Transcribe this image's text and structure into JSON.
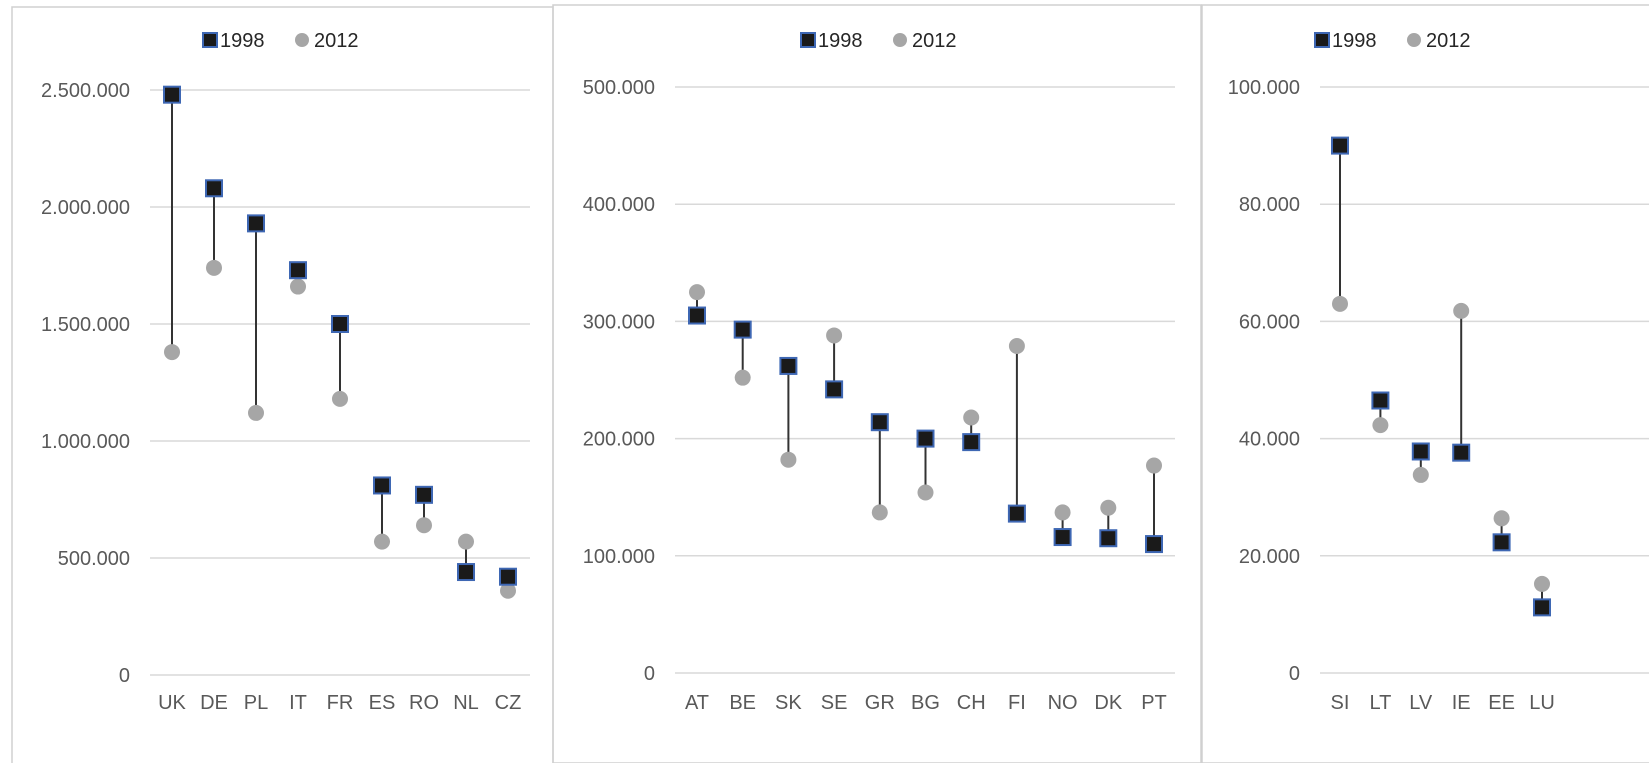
{
  "colors": {
    "series_1998_fill": "#1a1a1a",
    "series_1998_stroke": "#3e67b3",
    "series_2012_fill": "#a6a6a6",
    "connector": "#333333",
    "gridline": "#d9d9d9",
    "panel_border": "#d0d0d0",
    "text": "#595959"
  },
  "icons": {
    "marker_1998": "square-marker-icon",
    "marker_2012": "circle-marker-icon"
  },
  "chart_data": [
    {
      "type": "scatter",
      "style": "dumbbell",
      "legend": [
        "1998",
        "2012"
      ],
      "legend_placement": "top-center",
      "grid": true,
      "ylim": [
        0,
        2500000
      ],
      "yticks": [
        0,
        500000,
        1000000,
        1500000,
        2000000,
        2500000
      ],
      "ytick_labels": [
        "0",
        "500.000",
        "1.000.000",
        "1.500.000",
        "2.000.000",
        "2.500.000"
      ],
      "categories": [
        "UK",
        "DE",
        "PL",
        "IT",
        "FR",
        "ES",
        "RO",
        "NL",
        "CZ"
      ],
      "series": [
        {
          "name": "1998",
          "values": [
            2480000,
            2080000,
            1930000,
            1730000,
            1500000,
            810000,
            770000,
            440000,
            420000
          ]
        },
        {
          "name": "2012",
          "values": [
            1380000,
            1740000,
            1120000,
            1660000,
            1180000,
            570000,
            640000,
            570000,
            360000
          ]
        }
      ]
    },
    {
      "type": "scatter",
      "style": "dumbbell",
      "legend": [
        "1998",
        "2012"
      ],
      "legend_placement": "top-center",
      "grid": true,
      "ylim": [
        0,
        500000
      ],
      "yticks": [
        0,
        100000,
        200000,
        300000,
        400000,
        500000
      ],
      "ytick_labels": [
        "0",
        "100.000",
        "200.000",
        "300.000",
        "400.000",
        "500.000"
      ],
      "categories": [
        "AT",
        "BE",
        "SK",
        "SE",
        "GR",
        "BG",
        "CH",
        "FI",
        "NO",
        "DK",
        "PT"
      ],
      "series": [
        {
          "name": "1998",
          "values": [
            305000,
            293000,
            262000,
            242000,
            214000,
            200000,
            197000,
            136000,
            116000,
            115000,
            110000
          ]
        },
        {
          "name": "2012",
          "values": [
            325000,
            252000,
            182000,
            288000,
            137000,
            154000,
            218000,
            279000,
            137000,
            141000,
            177000
          ]
        }
      ]
    },
    {
      "type": "scatter",
      "style": "dumbbell",
      "legend": [
        "1998",
        "2012"
      ],
      "legend_placement": "top-center",
      "grid": true,
      "ylim": [
        0,
        100000
      ],
      "yticks": [
        0,
        20000,
        40000,
        60000,
        80000,
        100000
      ],
      "ytick_labels": [
        "0",
        "20.000",
        "40.000",
        "60.000",
        "80.000",
        "100.000"
      ],
      "categories": [
        "SI",
        "LT",
        "LV",
        "IE",
        "EE",
        "LU"
      ],
      "series": [
        {
          "name": "1998",
          "values": [
            90000,
            46500,
            37800,
            37600,
            22300,
            11200
          ]
        },
        {
          "name": "2012",
          "values": [
            63000,
            42300,
            33800,
            61800,
            26400,
            15200
          ]
        }
      ]
    }
  ]
}
